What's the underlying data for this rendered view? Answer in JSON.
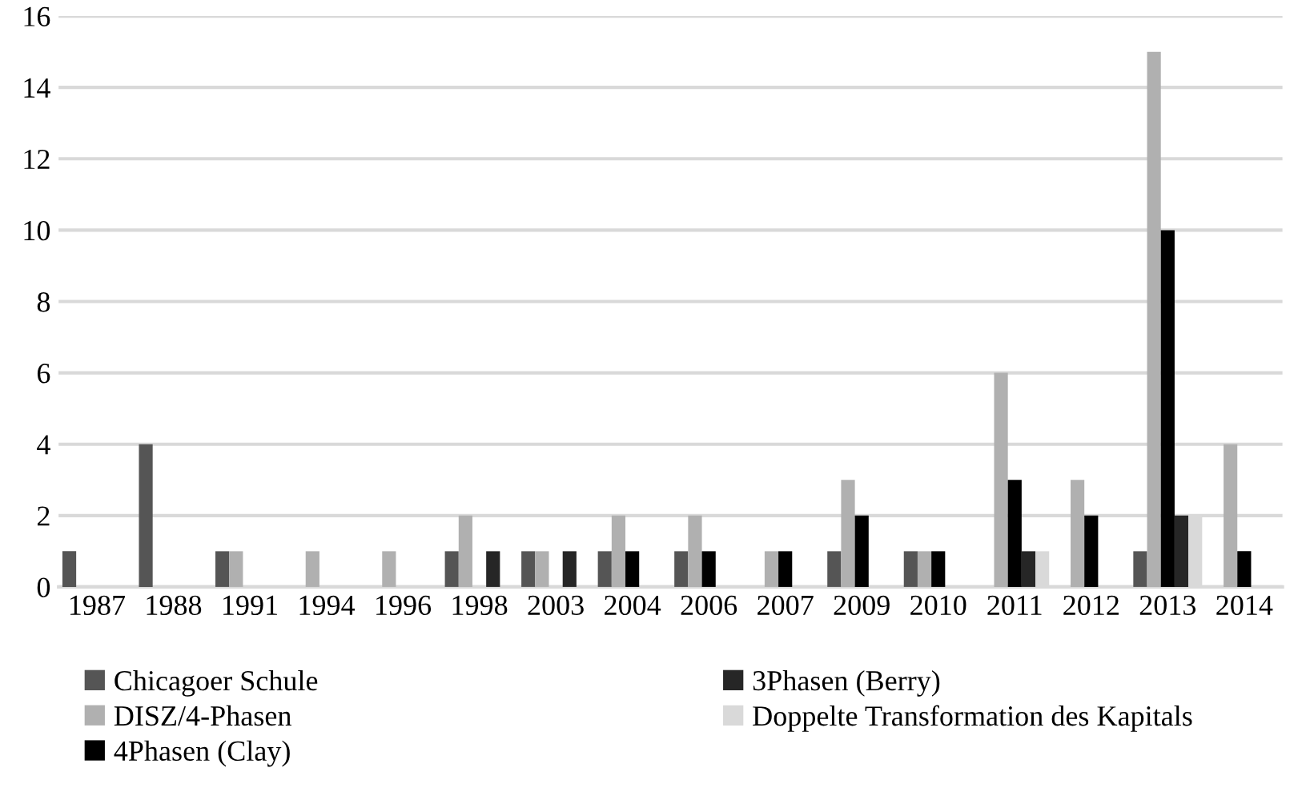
{
  "chart_data": {
    "type": "bar",
    "categories": [
      "1987",
      "1988",
      "1991",
      "1994",
      "1996",
      "1998",
      "2003",
      "2004",
      "2006",
      "2007",
      "2009",
      "2010",
      "2011",
      "2012",
      "2013",
      "2014"
    ],
    "series": [
      {
        "name": "Chicagoer Schule",
        "color": "#555555",
        "values": [
          1,
          4,
          1,
          0,
          0,
          1,
          1,
          1,
          1,
          0,
          1,
          1,
          0,
          0,
          1,
          0
        ]
      },
      {
        "name": "DISZ/4-Phasen",
        "color": "#b0b0b0",
        "values": [
          0,
          0,
          1,
          1,
          1,
          2,
          1,
          2,
          2,
          1,
          3,
          1,
          6,
          3,
          15,
          4
        ]
      },
      {
        "name": "4Phasen (Clay)",
        "color": "#000000",
        "values": [
          0,
          0,
          0,
          0,
          0,
          0,
          0,
          1,
          1,
          1,
          2,
          1,
          3,
          2,
          10,
          1
        ]
      },
      {
        "name": "3Phasen (Berry)",
        "color": "#262626",
        "values": [
          0,
          0,
          0,
          0,
          0,
          1,
          1,
          0,
          0,
          0,
          0,
          0,
          1,
          0,
          2,
          0
        ]
      },
      {
        "name": "Doppelte Transformation des Kapitals",
        "color": "#d9d9d9",
        "values": [
          0,
          0,
          0,
          0,
          0,
          0,
          0,
          0,
          0,
          0,
          0,
          0,
          1,
          0,
          2,
          0
        ]
      }
    ],
    "ylim": [
      0,
      16
    ],
    "yticks": [
      0,
      2,
      4,
      6,
      8,
      10,
      12,
      14,
      16
    ],
    "grid": "y",
    "legend": "bottom"
  }
}
